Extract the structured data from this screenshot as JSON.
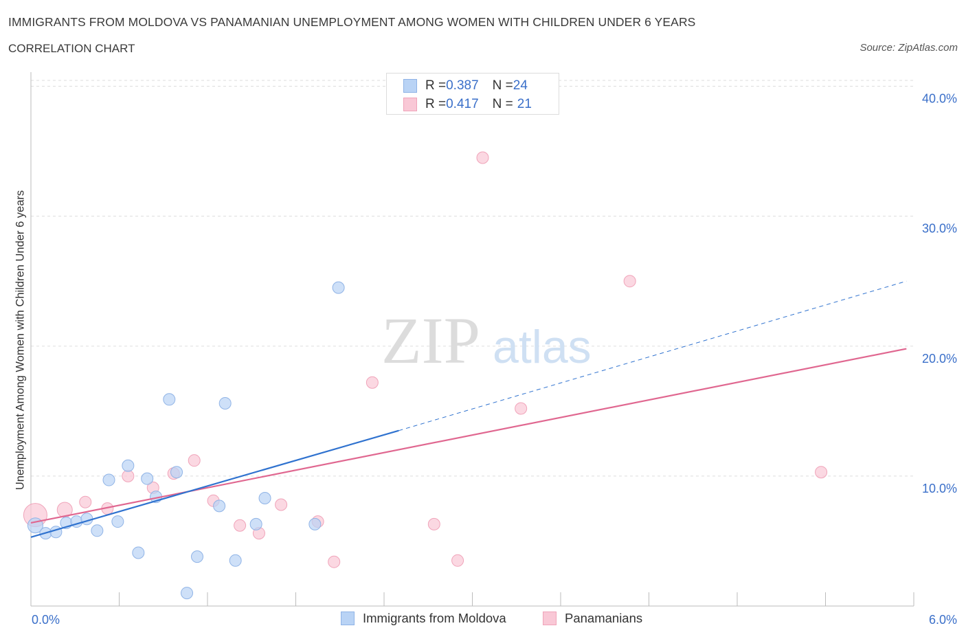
{
  "title": "IMMIGRANTS FROM MOLDOVA VS PANAMANIAN UNEMPLOYMENT AMONG WOMEN WITH CHILDREN UNDER 6 YEARS",
  "subtitle": "CORRELATION CHART",
  "source": "Source: ZipAtlas.com",
  "watermark": {
    "zip": "ZIP",
    "atlas": "atlas"
  },
  "legend_top": {
    "rows": [
      {
        "r_label": "R = ",
        "r_value": "0.387",
        "n_label": "N = ",
        "n_value": "24"
      },
      {
        "r_label": "R = ",
        "r_value": "0.417",
        "n_label": "N = ",
        "n_value": "21"
      }
    ]
  },
  "legend_bottom": [
    "Immigrants from Moldova",
    "Panamanians"
  ],
  "colors": {
    "moldova_fill": "#b9d3f5",
    "moldova_stroke": "#8fb3e6",
    "moldova_line": "#2f72cf",
    "pan_fill": "#f9c8d6",
    "pan_stroke": "#f0a3b9",
    "pan_line": "#e06790",
    "grid": "#dddddd",
    "axis_label": "#3a6fc9"
  },
  "chart_data": {
    "type": "scatter",
    "title": "IMMIGRANTS FROM MOLDOVA VS PANAMANIAN UNEMPLOYMENT AMONG WOMEN WITH CHILDREN UNDER 6 YEARS",
    "subtitle": "CORRELATION CHART",
    "xlabel": "",
    "ylabel": "Unemployment Among Women with Children Under 6 years",
    "xlim": [
      0,
      6
    ],
    "ylim": [
      0,
      40
    ],
    "x_tick_labels": [
      "0.0%",
      "6.0%"
    ],
    "y_ticks": [
      10,
      20,
      30,
      40
    ],
    "y_tick_labels": [
      "10.0%",
      "20.0%",
      "30.0%",
      "40.0%"
    ],
    "grid": true,
    "legend_position": "bottom",
    "series": [
      {
        "name": "Immigrants from Moldova",
        "R": 0.387,
        "N": 24,
        "points": [
          {
            "x": 0.03,
            "y": 6.2
          },
          {
            "x": 0.1,
            "y": 5.6
          },
          {
            "x": 0.17,
            "y": 5.7
          },
          {
            "x": 0.24,
            "y": 6.4
          },
          {
            "x": 0.31,
            "y": 6.5
          },
          {
            "x": 0.38,
            "y": 6.7
          },
          {
            "x": 0.45,
            "y": 5.8
          },
          {
            "x": 0.53,
            "y": 9.7
          },
          {
            "x": 0.59,
            "y": 6.5
          },
          {
            "x": 0.66,
            "y": 10.8
          },
          {
            "x": 0.73,
            "y": 4.1
          },
          {
            "x": 0.79,
            "y": 9.8
          },
          {
            "x": 0.85,
            "y": 8.4
          },
          {
            "x": 0.94,
            "y": 15.9
          },
          {
            "x": 0.99,
            "y": 10.3
          },
          {
            "x": 1.06,
            "y": 1.0
          },
          {
            "x": 1.13,
            "y": 3.8
          },
          {
            "x": 1.28,
            "y": 7.7
          },
          {
            "x": 1.32,
            "y": 15.6
          },
          {
            "x": 1.39,
            "y": 3.5
          },
          {
            "x": 1.53,
            "y": 6.3
          },
          {
            "x": 1.59,
            "y": 8.3
          },
          {
            "x": 1.93,
            "y": 6.3
          },
          {
            "x": 2.09,
            "y": 24.5
          }
        ],
        "trend": {
          "x0": 0.0,
          "y0": 5.3,
          "x1": 2.5,
          "y1": 13.5,
          "dashed_to_x": 5.95,
          "dashed_to_y": 25.0
        }
      },
      {
        "name": "Panamanians",
        "R": 0.417,
        "N": 21,
        "points": [
          {
            "x": 0.03,
            "y": 7.0
          },
          {
            "x": 0.23,
            "y": 7.4
          },
          {
            "x": 0.37,
            "y": 8.0
          },
          {
            "x": 0.52,
            "y": 7.5
          },
          {
            "x": 0.66,
            "y": 10.0
          },
          {
            "x": 0.83,
            "y": 9.1
          },
          {
            "x": 0.97,
            "y": 10.2
          },
          {
            "x": 1.11,
            "y": 11.2
          },
          {
            "x": 1.24,
            "y": 8.1
          },
          {
            "x": 1.42,
            "y": 6.2
          },
          {
            "x": 1.55,
            "y": 5.6
          },
          {
            "x": 1.7,
            "y": 7.8
          },
          {
            "x": 1.95,
            "y": 6.5
          },
          {
            "x": 2.06,
            "y": 3.4
          },
          {
            "x": 2.32,
            "y": 17.2
          },
          {
            "x": 2.74,
            "y": 6.3
          },
          {
            "x": 2.9,
            "y": 3.5
          },
          {
            "x": 3.07,
            "y": 34.5
          },
          {
            "x": 3.33,
            "y": 15.2
          },
          {
            "x": 4.07,
            "y": 25.0
          },
          {
            "x": 5.37,
            "y": 10.3
          }
        ],
        "trend": {
          "x0": 0.0,
          "y0": 6.4,
          "x1": 5.95,
          "y1": 19.8
        }
      }
    ]
  }
}
